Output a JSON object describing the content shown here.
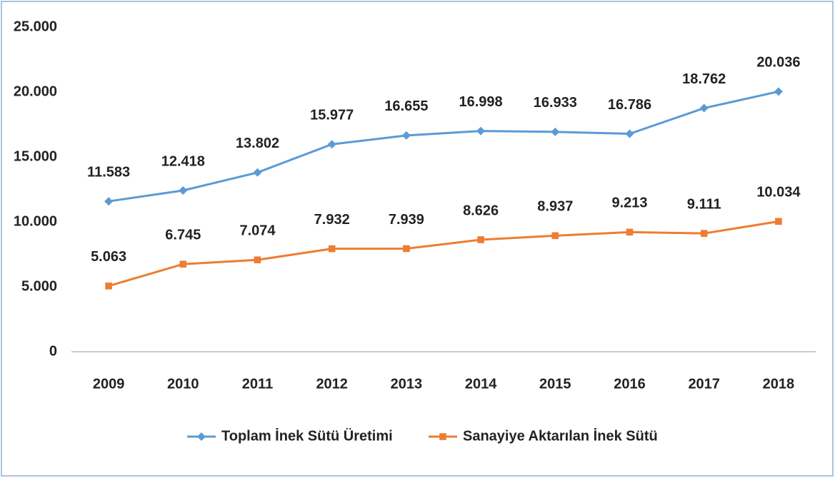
{
  "chart_data": {
    "type": "line",
    "categories": [
      "2009",
      "2010",
      "2011",
      "2012",
      "2013",
      "2014",
      "2015",
      "2016",
      "2017",
      "2018"
    ],
    "series": [
      {
        "name": "Toplam İnek Sütü Üretimi",
        "color": "#5b9bd5",
        "marker": "diamond",
        "values": [
          11583,
          12418,
          13802,
          15977,
          16655,
          16998,
          16933,
          16786,
          18762,
          20036
        ],
        "value_labels": [
          "11.583",
          "12.418",
          "13.802",
          "15.977",
          "16.655",
          "16.998",
          "16.933",
          "16.786",
          "18.762",
          "20.036"
        ]
      },
      {
        "name": "Sanayiye Aktarılan İnek Sütü",
        "color": "#ed7d31",
        "marker": "square",
        "values": [
          5063,
          6745,
          7074,
          7932,
          7939,
          8626,
          8937,
          9213,
          9111,
          10034
        ],
        "value_labels": [
          "5.063",
          "6.745",
          "7.074",
          "7.932",
          "7.939",
          "8.626",
          "8.937",
          "9.213",
          "9.111",
          "10.034"
        ]
      }
    ],
    "ylim": [
      0,
      25000
    ],
    "yticks": [
      0,
      {
        "value": 5000,
        "label": "5.000"
      },
      {
        "value": 10000,
        "label": "10.000"
      },
      {
        "value": 15000,
        "label": "15.000"
      },
      {
        "value": 20000,
        "label": "20.000"
      },
      {
        "value": 25000,
        "label": "25.000"
      }
    ],
    "grid": false,
    "legend": "bottom"
  }
}
